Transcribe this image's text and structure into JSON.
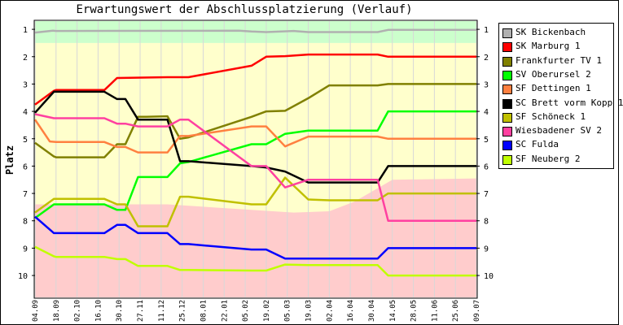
{
  "chart_data": {
    "type": "line",
    "title": "Erwartungswert der Abschlussplatzierung (Verlauf)",
    "ylabel": "Platz",
    "ylim": [
      0.7,
      10.8
    ],
    "y_inverted": true,
    "y_ticks": [
      1,
      2,
      3,
      4,
      5,
      6,
      7,
      8,
      9,
      10
    ],
    "categories": [
      "04.09",
      "18.09",
      "02.10",
      "16.10",
      "30.10",
      "27.11",
      "11.12",
      "25.12",
      "08.01",
      "22.01",
      "05.02",
      "19.02",
      "05.03",
      "19.03",
      "02.04",
      "16.04",
      "30.04",
      "14.05",
      "28.05",
      "11.06",
      "25.06",
      "09.07"
    ],
    "x_positions": [
      0,
      1,
      2,
      3,
      4,
      5,
      6,
      7,
      8,
      9,
      10,
      11,
      12,
      13,
      14,
      15,
      16,
      17,
      18,
      19,
      20,
      21
    ],
    "legend_position": "right",
    "background_bands": [
      {
        "color": "#ccffcc",
        "from": [
          1.5,
          1.5
        ],
        "to": [
          0.7,
          0.7
        ]
      },
      {
        "color": "#ffffcc",
        "from": [
          1.5,
          1.5
        ],
        "to": [
          7.4,
          6.45
        ]
      },
      {
        "color": "#ffcccc",
        "from": [
          7.4,
          6.45
        ],
        "to": [
          10.8,
          10.8
        ]
      }
    ],
    "series": [
      {
        "name": "SK Bickenbach",
        "color": "#b0b0b0",
        "x": [
          0,
          0.85,
          1,
          9.7,
          10.3,
          11,
          12.3,
          13,
          14,
          15.5,
          16.3,
          16.8,
          18,
          21
        ],
        "values": [
          1.12,
          1.05,
          1.06,
          1.05,
          1.08,
          1.1,
          1.06,
          1.1,
          1.1,
          1.1,
          1.1,
          1.02,
          1.02,
          1.02
        ]
      },
      {
        "name": "SK Marburg 1",
        "color": "#ff0000",
        "x": [
          0,
          0.9,
          1,
          3.3,
          3.9,
          6.3,
          6.9,
          7.3,
          10.3,
          11,
          11.9,
          13,
          16.3,
          16.8,
          21
        ],
        "values": [
          3.75,
          3.25,
          3.22,
          3.22,
          2.78,
          2.75,
          2.75,
          2.75,
          2.33,
          2.0,
          1.98,
          1.92,
          1.92,
          2.0,
          2.0
        ]
      },
      {
        "name": "Frankfurter TV 1",
        "color": "#808000",
        "x": [
          0,
          0.9,
          1,
          3.3,
          3.9,
          4.3,
          4.9,
          5.3,
          6.3,
          6.9,
          7.3,
          10.3,
          11,
          11.9,
          13,
          14,
          15.5,
          16.3,
          16.8,
          21
        ],
        "values": [
          5.15,
          5.65,
          5.68,
          5.68,
          5.2,
          5.2,
          4.2,
          4.2,
          4.18,
          5.0,
          4.95,
          4.2,
          4.0,
          3.98,
          3.52,
          3.05,
          3.05,
          3.05,
          3.0,
          3.0
        ]
      },
      {
        "name": "SV Oberursel 2",
        "color": "#00ff00",
        "x": [
          0,
          0.9,
          1,
          3.3,
          3.9,
          4.3,
          4.9,
          5.3,
          6.3,
          6.9,
          7.3,
          10.3,
          11,
          11.9,
          13,
          14,
          15.5,
          16.3,
          16.8,
          21
        ],
        "values": [
          7.9,
          7.4,
          7.4,
          7.4,
          7.6,
          7.6,
          6.4,
          6.4,
          6.4,
          5.9,
          5.85,
          5.2,
          5.2,
          4.82,
          4.7,
          4.7,
          4.7,
          4.7,
          4.0,
          4.0
        ]
      },
      {
        "name": "SF Dettingen 1",
        "color": "#ff8040",
        "x": [
          0,
          0.7,
          1,
          3.3,
          3.9,
          4.3,
          4.9,
          5.3,
          6.3,
          6.9,
          7.3,
          10.3,
          11,
          11.9,
          13,
          14,
          15.5,
          16.3,
          16.8,
          21
        ],
        "values": [
          4.3,
          5.1,
          5.12,
          5.12,
          5.3,
          5.3,
          5.5,
          5.5,
          5.5,
          4.9,
          4.9,
          4.55,
          4.55,
          5.28,
          4.92,
          4.92,
          4.92,
          4.92,
          5.0,
          5.0
        ]
      },
      {
        "name": "SC Brett vorm Kopp 1",
        "color": "#000000",
        "x": [
          0,
          0.9,
          1,
          3.3,
          3.9,
          4.3,
          4.9,
          5.3,
          6.3,
          6.9,
          7.3,
          10.3,
          11,
          11.9,
          13,
          14,
          15.5,
          16.3,
          16.8,
          21
        ],
        "values": [
          4.05,
          3.28,
          3.28,
          3.28,
          3.55,
          3.55,
          4.3,
          4.3,
          4.3,
          5.82,
          5.82,
          6.0,
          6.05,
          6.2,
          6.6,
          6.6,
          6.6,
          6.6,
          6.0,
          6.0
        ]
      },
      {
        "name": "SF Schöneck 1",
        "color": "#c0c000",
        "x": [
          0,
          0.9,
          1,
          3.3,
          3.9,
          4.3,
          4.9,
          5.3,
          6.3,
          6.9,
          7.3,
          10.3,
          11,
          11.9,
          13,
          14,
          15.5,
          16.3,
          16.8,
          21
        ],
        "values": [
          7.7,
          7.2,
          7.2,
          7.2,
          7.4,
          7.4,
          8.2,
          8.2,
          8.2,
          7.12,
          7.12,
          7.4,
          7.4,
          6.42,
          7.22,
          7.25,
          7.25,
          7.25,
          7.0,
          7.0
        ]
      },
      {
        "name": "Wiesbadener SV 2",
        "color": "#ff40a0",
        "x": [
          0,
          0.9,
          1,
          3.3,
          3.9,
          4.3,
          4.9,
          5.3,
          6.3,
          6.9,
          7.3,
          10.3,
          11,
          11.9,
          13,
          14,
          15.5,
          16.3,
          16.8,
          21
        ],
        "values": [
          4.1,
          4.25,
          4.25,
          4.25,
          4.45,
          4.45,
          4.55,
          4.55,
          4.55,
          4.3,
          4.3,
          6.0,
          6.0,
          6.78,
          6.5,
          6.5,
          6.5,
          6.5,
          8.0,
          8.0
        ]
      },
      {
        "name": "SC Fulda",
        "color": "#0000ff",
        "x": [
          0,
          0.9,
          1,
          3.3,
          3.9,
          4.3,
          4.9,
          5.3,
          6.3,
          6.9,
          7.3,
          10.3,
          11,
          11.9,
          13,
          14,
          15.5,
          16.3,
          16.8,
          21
        ],
        "values": [
          7.85,
          8.45,
          8.45,
          8.45,
          8.15,
          8.15,
          8.45,
          8.45,
          8.45,
          8.85,
          8.85,
          9.05,
          9.05,
          9.38,
          9.38,
          9.38,
          9.38,
          9.38,
          9.0,
          9.0
        ]
      },
      {
        "name": "SF Neuberg 2",
        "color": "#c0ff00",
        "x": [
          0,
          0.9,
          1,
          3.3,
          3.9,
          4.3,
          4.9,
          5.3,
          6.3,
          6.9,
          7.3,
          10.3,
          11,
          11.9,
          13,
          14,
          15.5,
          16.3,
          16.8,
          21
        ],
        "values": [
          8.95,
          9.3,
          9.32,
          9.32,
          9.4,
          9.4,
          9.65,
          9.65,
          9.65,
          9.8,
          9.8,
          9.82,
          9.82,
          9.6,
          9.62,
          9.62,
          9.62,
          9.62,
          10.0,
          10.0
        ]
      }
    ]
  }
}
